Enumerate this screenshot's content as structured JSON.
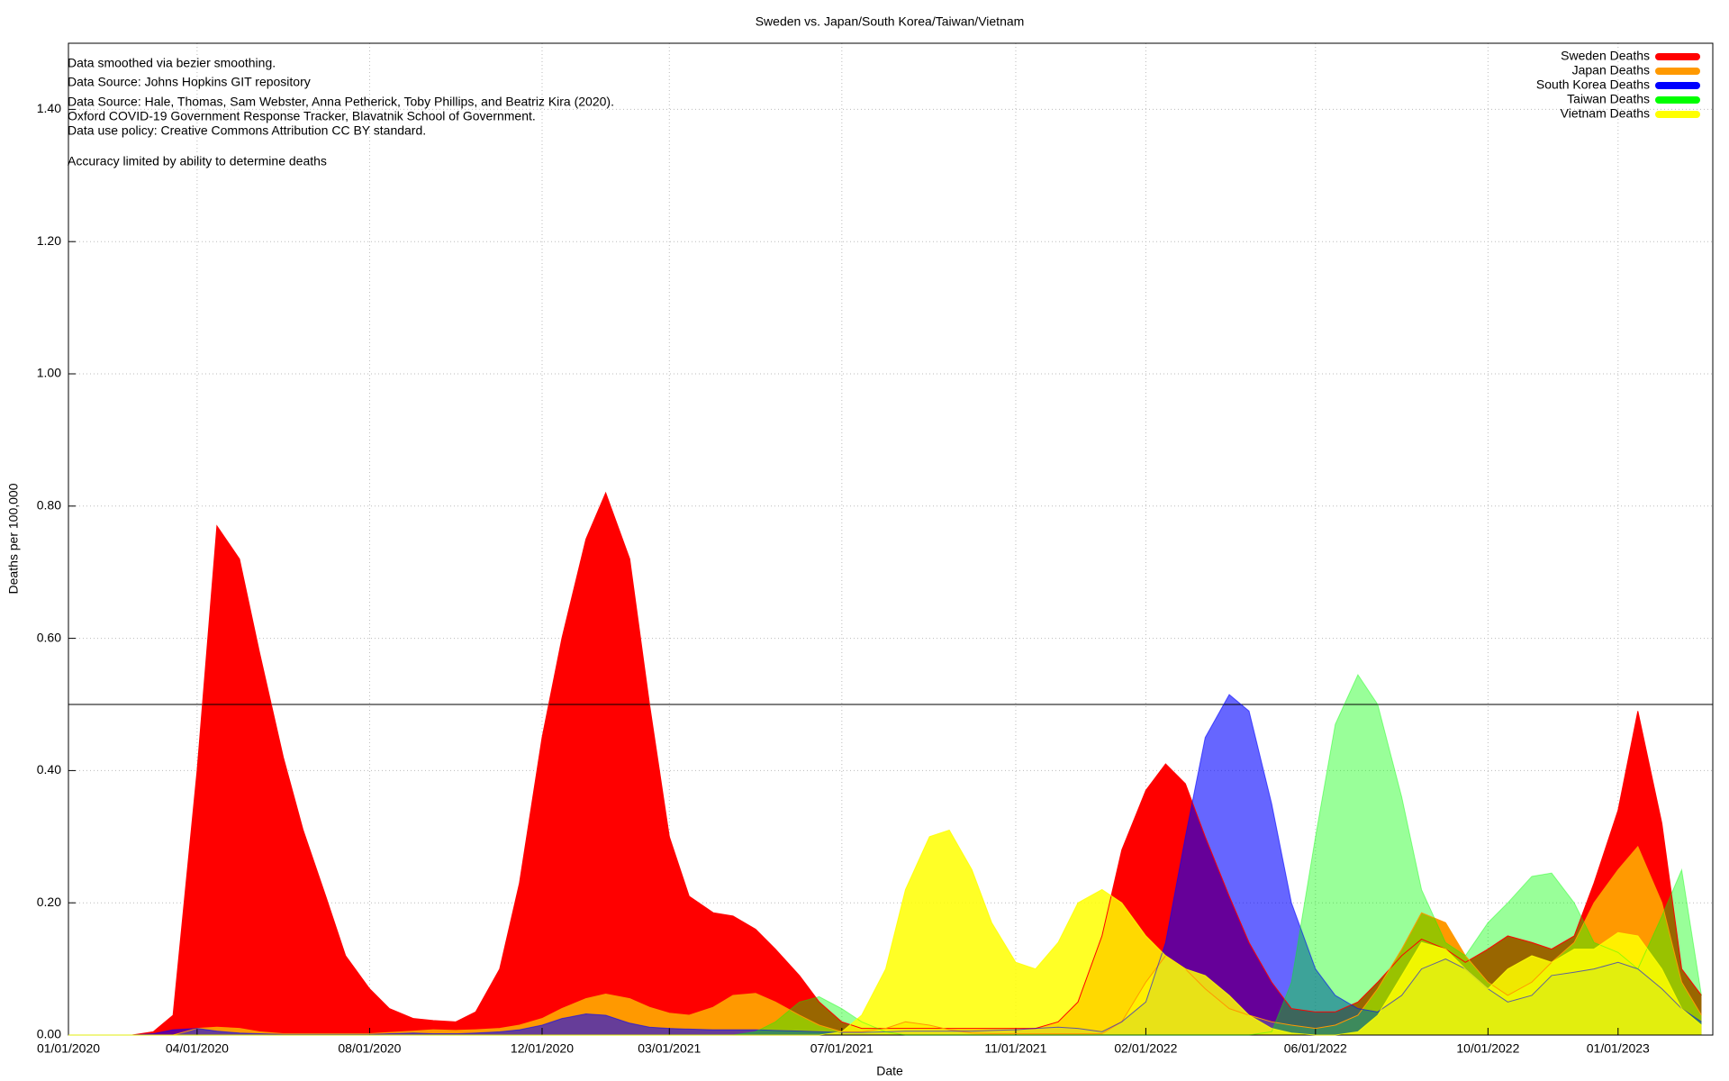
{
  "chart_data": {
    "type": "area",
    "title": "Sweden vs. Japan/South Korea/Taiwan/Vietnam",
    "x_label": "Date",
    "y_label": "Deaths per 100,000",
    "notes": [
      "Data smoothed via bezier smoothing.",
      "Data Source: Johns Hopkins GIT repository",
      "Data Source: Hale, Thomas, Sam Webster, Anna Petherick, Toby Phillips, and Beatriz Kira (2020).",
      "Oxford COVID-19 Government Response Tracker, Blavatnik School of Government.",
      "Data use policy: Creative Commons Attribution CC BY standard.",
      "Accuracy limited by ability to determine deaths"
    ],
    "legend": "upper right",
    "grid": true,
    "hline": 0.5,
    "xlim": [
      "01/01/2020",
      "03/09/2023"
    ],
    "xticks": [
      "01/01/2020",
      "04/01/2020",
      "08/01/2020",
      "12/01/2020",
      "03/01/2021",
      "07/01/2021",
      "11/01/2021",
      "02/01/2022",
      "06/01/2022",
      "10/01/2022",
      "01/01/2023"
    ],
    "ylim": [
      0,
      1.5
    ],
    "yticks": [
      {
        "value": 0,
        "label": "0.00"
      },
      {
        "value": 0.2,
        "label": "0.20"
      },
      {
        "value": 0.4,
        "label": "0.40"
      },
      {
        "value": 0.6,
        "label": "0.60"
      },
      {
        "value": 0.8,
        "label": "0.80"
      },
      {
        "value": 1.0,
        "label": "1.00"
      },
      {
        "value": 1.2,
        "label": "1.20"
      },
      {
        "value": 1.4,
        "label": "1.40"
      }
    ],
    "x": [
      "01/01/2020",
      "01/15/2020",
      "02/01/2020",
      "02/15/2020",
      "03/01/2020",
      "03/15/2020",
      "04/01/2020",
      "04/15/2020",
      "05/01/2020",
      "05/15/2020",
      "06/01/2020",
      "06/15/2020",
      "07/01/2020",
      "07/15/2020",
      "08/01/2020",
      "08/15/2020",
      "09/01/2020",
      "09/15/2020",
      "10/01/2020",
      "10/15/2020",
      "11/01/2020",
      "11/15/2020",
      "12/01/2020",
      "12/15/2020",
      "01/01/2021",
      "01/15/2021",
      "02/01/2021",
      "02/15/2021",
      "03/01/2021",
      "03/15/2021",
      "04/01/2021",
      "04/15/2021",
      "05/01/2021",
      "05/15/2021",
      "06/01/2021",
      "06/15/2021",
      "07/01/2021",
      "07/15/2021",
      "08/01/2021",
      "08/15/2021",
      "09/01/2021",
      "09/15/2021",
      "10/01/2021",
      "10/15/2021",
      "11/01/2021",
      "11/15/2021",
      "12/01/2021",
      "12/15/2021",
      "01/01/2022",
      "01/15/2022",
      "02/01/2022",
      "02/15/2022",
      "03/01/2022",
      "03/15/2022",
      "04/01/2022",
      "04/15/2022",
      "05/01/2022",
      "05/15/2022",
      "06/01/2022",
      "06/15/2022",
      "07/01/2022",
      "07/15/2022",
      "08/01/2022",
      "08/15/2022",
      "09/01/2022",
      "09/15/2022",
      "10/01/2022",
      "10/15/2022",
      "11/01/2022",
      "11/15/2022",
      "12/01/2022",
      "12/15/2022",
      "01/01/2023",
      "01/15/2023",
      "02/01/2023",
      "02/15/2023",
      "03/01/2023"
    ],
    "series": [
      {
        "name": "Sweden Deaths",
        "color": "#ff0000",
        "values": [
          0,
          0,
          0,
          0,
          0.005,
          0.03,
          0.4,
          0.77,
          0.72,
          0.58,
          0.42,
          0.31,
          0.21,
          0.12,
          0.07,
          0.04,
          0.025,
          0.022,
          0.02,
          0.035,
          0.1,
          0.23,
          0.45,
          0.6,
          0.75,
          0.82,
          0.72,
          0.5,
          0.3,
          0.21,
          0.185,
          0.18,
          0.16,
          0.13,
          0.09,
          0.05,
          0.02,
          0.01,
          0.01,
          0.01,
          0.01,
          0.01,
          0.01,
          0.01,
          0.01,
          0.01,
          0.02,
          0.05,
          0.15,
          0.28,
          0.37,
          0.41,
          0.38,
          0.3,
          0.21,
          0.14,
          0.08,
          0.04,
          0.035,
          0.035,
          0.05,
          0.08,
          0.12,
          0.145,
          0.13,
          0.11,
          0.13,
          0.15,
          0.14,
          0.13,
          0.15,
          0.23,
          0.34,
          0.49,
          0.32,
          0.1,
          0.06
        ]
      },
      {
        "name": "Japan Deaths",
        "color": "#ff9900",
        "values": [
          0,
          0,
          0,
          0,
          0,
          0,
          0.01,
          0.012,
          0.01,
          0.005,
          0.002,
          0.002,
          0.002,
          0.002,
          0.002,
          0.004,
          0.006,
          0.008,
          0.007,
          0.008,
          0.01,
          0.015,
          0.025,
          0.04,
          0.055,
          0.062,
          0.055,
          0.042,
          0.033,
          0.03,
          0.042,
          0.06,
          0.063,
          0.05,
          0.03,
          0.015,
          0.005,
          0.005,
          0.01,
          0.02,
          0.015,
          0.008,
          0.003,
          0.002,
          0.002,
          0.002,
          0.002,
          0.002,
          0.002,
          0.02,
          0.08,
          0.12,
          0.1,
          0.07,
          0.04,
          0.03,
          0.02,
          0.015,
          0.01,
          0.015,
          0.03,
          0.07,
          0.13,
          0.185,
          0.17,
          0.12,
          0.08,
          0.06,
          0.08,
          0.11,
          0.14,
          0.2,
          0.25,
          0.285,
          0.2,
          0.08,
          0.03
        ]
      },
      {
        "name": "South Korea Deaths",
        "color": "#0000ff",
        "values": [
          0,
          0,
          0,
          0,
          0.002,
          0.008,
          0.01,
          0.006,
          0.003,
          0.002,
          0.001,
          0.001,
          0.001,
          0.001,
          0.001,
          0.002,
          0.003,
          0.002,
          0.002,
          0.003,
          0.005,
          0.008,
          0.015,
          0.025,
          0.032,
          0.03,
          0.018,
          0.012,
          0.01,
          0.009,
          0.008,
          0.008,
          0.008,
          0.007,
          0.006,
          0.005,
          0.004,
          0.004,
          0.005,
          0.006,
          0.006,
          0.006,
          0.006,
          0.007,
          0.008,
          0.01,
          0.012,
          0.01,
          0.005,
          0.02,
          0.05,
          0.14,
          0.3,
          0.45,
          0.515,
          0.49,
          0.35,
          0.2,
          0.1,
          0.06,
          0.04,
          0.035,
          0.06,
          0.1,
          0.115,
          0.1,
          0.07,
          0.05,
          0.06,
          0.09,
          0.095,
          0.1,
          0.11,
          0.1,
          0.07,
          0.04,
          0.02
        ]
      },
      {
        "name": "Taiwan Deaths",
        "color": "#00ff00",
        "values": [
          0,
          0,
          0,
          0,
          0,
          0,
          0,
          0,
          0,
          0,
          0,
          0,
          0,
          0,
          0,
          0,
          0,
          0,
          0,
          0,
          0,
          0,
          0,
          0,
          0,
          0,
          0,
          0,
          0,
          0,
          0,
          0,
          0.005,
          0.02,
          0.05,
          0.058,
          0.04,
          0.02,
          0.005,
          0,
          0,
          0,
          0,
          0,
          0,
          0,
          0,
          0,
          0,
          0,
          0,
          0,
          0,
          0,
          0,
          0,
          0.005,
          0.08,
          0.3,
          0.47,
          0.545,
          0.5,
          0.36,
          0.22,
          0.14,
          0.12,
          0.17,
          0.2,
          0.24,
          0.245,
          0.2,
          0.14,
          0.125,
          0.1,
          0.18,
          0.25,
          0.06
        ]
      },
      {
        "name": "Vietnam Deaths",
        "color": "#ffff00",
        "values": [
          0,
          0,
          0,
          0,
          0,
          0,
          0,
          0,
          0,
          0,
          0,
          0,
          0,
          0,
          0,
          0,
          0,
          0,
          0,
          0,
          0,
          0,
          0,
          0,
          0,
          0,
          0,
          0,
          0,
          0,
          0,
          0,
          0,
          0,
          0,
          0,
          0.005,
          0.03,
          0.1,
          0.22,
          0.3,
          0.31,
          0.25,
          0.17,
          0.11,
          0.1,
          0.14,
          0.2,
          0.22,
          0.2,
          0.15,
          0.12,
          0.1,
          0.09,
          0.06,
          0.03,
          0.01,
          0.003,
          0,
          0,
          0.005,
          0.03,
          0.09,
          0.14,
          0.13,
          0.1,
          0.07,
          0.1,
          0.12,
          0.11,
          0.13,
          0.13,
          0.155,
          0.15,
          0.1,
          0.04,
          0.015
        ]
      }
    ]
  }
}
